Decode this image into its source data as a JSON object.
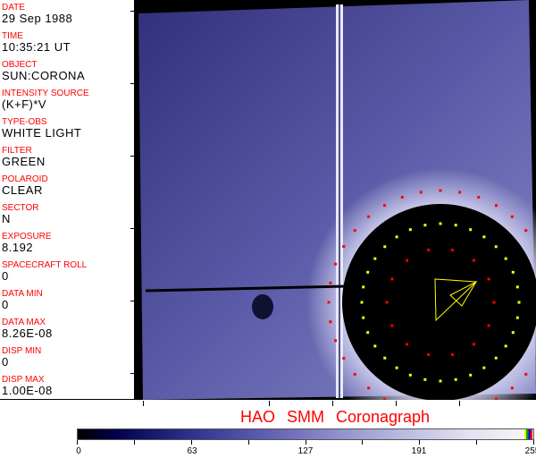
{
  "fields": [
    {
      "label": "DATE",
      "value": "29 Sep 1988"
    },
    {
      "label": "TIME",
      "value": "10:35:21 UT"
    },
    {
      "label": "OBJECT",
      "value": "SUN:CORONA"
    },
    {
      "label": "INTENSITY SOURCE",
      "value": "(K+F)*V"
    },
    {
      "label": "TYPE-OBS",
      "value": "WHITE LIGHT"
    },
    {
      "label": "FILTER",
      "value": "GREEN"
    },
    {
      "label": "POLAROID",
      "value": "CLEAR"
    },
    {
      "label": "SECTOR",
      "value": "N"
    },
    {
      "label": "EXPOSURE",
      "value": "8.192"
    },
    {
      "label": "SPACECRAFT ROLL",
      "value": "0"
    },
    {
      "label": "DATA MIN",
      "value": "0"
    },
    {
      "label": "DATA MAX",
      "value": "8.26E-08"
    },
    {
      "label": "DISP MIN",
      "value": "0"
    },
    {
      "label": "DISP MAX",
      "value": "1.00E-08"
    }
  ],
  "title": "HAO SMM Coronagraph",
  "colorbar": {
    "ticks": [
      "0",
      "63",
      "127",
      "191",
      "255"
    ],
    "colors": [
      "#000000",
      "#303090",
      "#a8a8d8",
      "#f8f8f8"
    ],
    "overlay_colors": [
      "#ffff00",
      "#00aa00",
      "#0000ff",
      "#ff0000"
    ]
  }
}
